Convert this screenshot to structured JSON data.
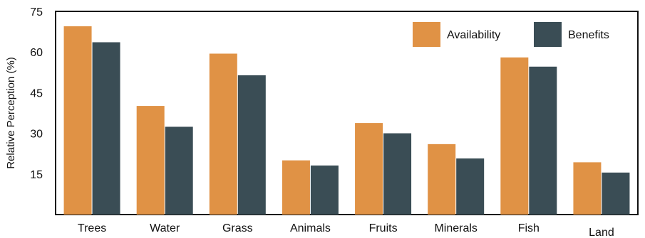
{
  "chart_data": {
    "type": "bar",
    "title": "",
    "xlabel": "",
    "ylabel": "Relative Perception (%)",
    "ylim": [
      0,
      75
    ],
    "yticks": [
      15,
      30,
      45,
      60,
      75
    ],
    "categories": [
      "Trees",
      "Water",
      "Grass",
      "Animals",
      "Fruits",
      "Minerals",
      "Fish",
      "Land"
    ],
    "series": [
      {
        "name": "Availability",
        "color": "#e09245",
        "values": [
          69.5,
          40.1,
          59.4,
          20,
          33.8,
          26,
          58,
          19.3
        ]
      },
      {
        "name": "Benefits",
        "color": "#3a4d55",
        "values": [
          63.6,
          32.4,
          51.4,
          18.1,
          30,
          20.7,
          54.6,
          15.5
        ]
      }
    ],
    "legend_position": "top-right",
    "grid": false
  }
}
